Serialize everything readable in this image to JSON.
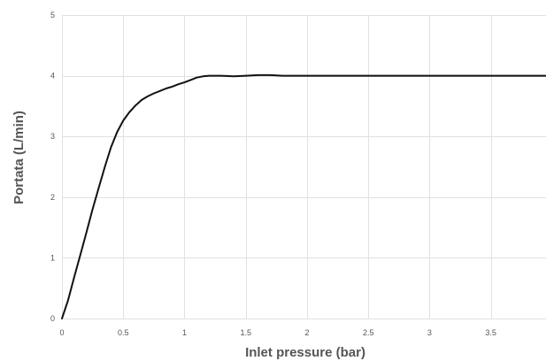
{
  "chart_data": {
    "type": "line",
    "title": "",
    "xlabel": "Inlet pressure (bar)",
    "ylabel": "Portata (L/min)",
    "xlim": [
      0,
      3.95
    ],
    "ylim": [
      0,
      5
    ],
    "x_ticks": [
      "0",
      "0.5",
      "1",
      "1.5",
      "2",
      "2.5",
      "3",
      "3.5"
    ],
    "x_tick_values": [
      0,
      0.5,
      1,
      1.5,
      2,
      2.5,
      3,
      3.5
    ],
    "y_ticks": [
      "0",
      "1",
      "2",
      "3",
      "4",
      "5"
    ],
    "y_tick_values": [
      0,
      1,
      2,
      3,
      4,
      5
    ],
    "grid": true,
    "series": [
      {
        "color": "#111111",
        "x": [
          0,
          0.05,
          0.1,
          0.15,
          0.2,
          0.25,
          0.3,
          0.35,
          0.4,
          0.45,
          0.5,
          0.55,
          0.6,
          0.65,
          0.7,
          0.75,
          0.8,
          0.85,
          0.9,
          0.95,
          1.0,
          1.05,
          1.1,
          1.15,
          1.2,
          1.3,
          1.4,
          1.5,
          1.6,
          1.7,
          1.8,
          1.9,
          2.0,
          2.5,
          3.0,
          3.5,
          3.95
        ],
        "y": [
          0,
          0.3,
          0.68,
          1.05,
          1.42,
          1.8,
          2.15,
          2.5,
          2.82,
          3.07,
          3.26,
          3.4,
          3.51,
          3.6,
          3.66,
          3.71,
          3.75,
          3.79,
          3.82,
          3.86,
          3.89,
          3.93,
          3.97,
          3.99,
          4.0,
          4.0,
          3.99,
          4.0,
          4.01,
          4.01,
          4.0,
          4.0,
          4.0,
          4.0,
          4.0,
          4.0,
          4.0
        ]
      }
    ]
  }
}
